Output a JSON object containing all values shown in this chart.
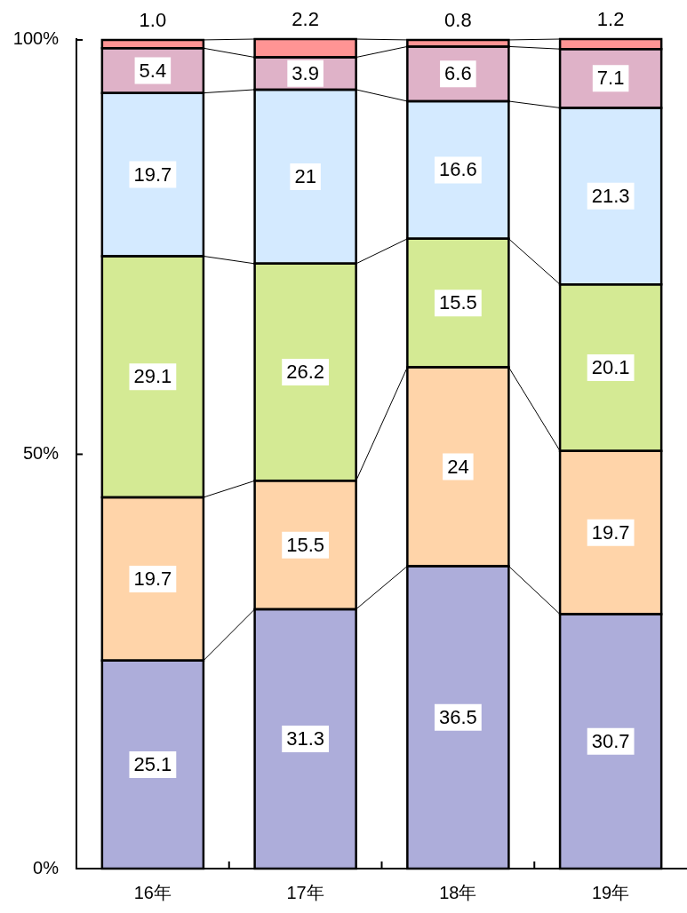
{
  "chart_data": {
    "type": "bar",
    "stacked": true,
    "categories": [
      "16年",
      "17年",
      "18年",
      "19年"
    ],
    "series": [
      {
        "color": "#3c3ca8",
        "values": [
          25.1,
          31.3,
          36.5,
          30.7
        ],
        "value_labels": [
          "25.1",
          "31.3",
          "36.5",
          "30.7"
        ]
      },
      {
        "color": "#ff9933",
        "values": [
          19.7,
          15.5,
          24,
          19.7
        ],
        "value_labels": [
          "19.7",
          "15.5",
          "24",
          "19.7"
        ]
      },
      {
        "color": "#99cc00",
        "values": [
          29.1,
          26.2,
          15.5,
          20.1
        ],
        "value_labels": [
          "29.1",
          "26.2",
          "15.5",
          "20.1"
        ]
      },
      {
        "color": "#99ccff",
        "values": [
          19.7,
          21,
          16.6,
          21.3
        ],
        "value_labels": [
          "19.7",
          "21",
          "16.6",
          "21.3"
        ]
      },
      {
        "color": "#b3477d",
        "values": [
          5.4,
          3.9,
          6.6,
          7.1
        ],
        "value_labels": [
          "5.4",
          "3.9",
          "6.6",
          "7.1"
        ]
      },
      {
        "color": "#ff0000",
        "values": [
          1.0,
          2.2,
          0.8,
          1.2
        ],
        "value_labels": [
          "1.0",
          "2.2",
          "0.8",
          "1.2"
        ]
      }
    ],
    "ylim": [
      0,
      100.1
    ],
    "yticks": [
      {
        "value": 0,
        "label": "0%"
      },
      {
        "value": 50,
        "label": "50%"
      },
      {
        "value": 100,
        "label": "100%"
      }
    ]
  }
}
